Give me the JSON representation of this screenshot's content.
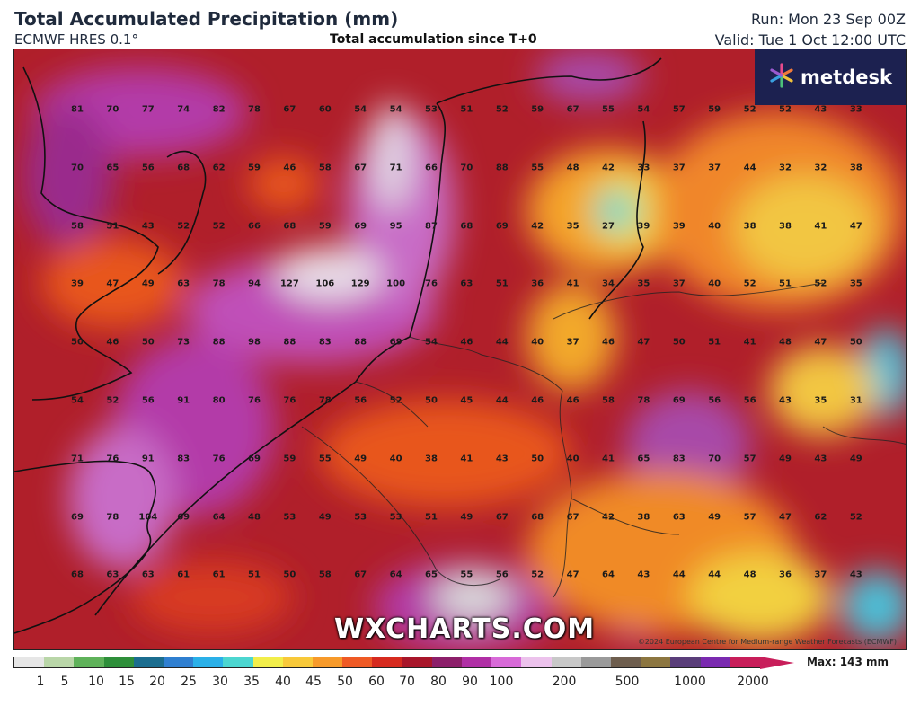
{
  "header": {
    "title": "Total Accumulated Precipitation (mm)",
    "model": "ECMWF HRES 0.1°",
    "subtitle": "Total accumulation since T+0",
    "run": "Run: Mon 23 Sep 00Z",
    "valid": "Valid: Tue 1 Oct 12:00 UTC"
  },
  "logo": {
    "text": "metdesk",
    "icon": "metdesk-star-icon"
  },
  "watermark": "WXCHARTS.COM",
  "copyright": "©2024 European Centre for Medium-range Weather Forecasts (ECMWF)",
  "colorbar": {
    "max_label": "Max: 143 mm",
    "ticks": [
      "1",
      "5",
      "10",
      "15",
      "20",
      "25",
      "30",
      "35",
      "40",
      "45",
      "50",
      "60",
      "70",
      "80",
      "90",
      "100",
      "200",
      "500",
      "1000",
      "2000"
    ],
    "colors": [
      "#e6e6e6",
      "#b9d6a8",
      "#5fb25a",
      "#2e8f3a",
      "#1b6d8f",
      "#2f7fd0",
      "#2ab0e8",
      "#4cd6d0",
      "#f2ee4a",
      "#f8c93a",
      "#f79a2a",
      "#ef5a25",
      "#d62a1f",
      "#a8162a",
      "#8c1f6a",
      "#b02fa5",
      "#d86ad8",
      "#ecc2ec",
      "#c8c8c8",
      "#9a9a9a",
      "#6e5e4e",
      "#8c7640",
      "#5a3e7a",
      "#7a2ab0",
      "#c81e5a"
    ]
  },
  "grid_values": [
    [
      "81",
      "70",
      "77",
      "74",
      "82",
      "78",
      "67",
      "60",
      "54",
      "54",
      "53",
      "51",
      "52",
      "59",
      "67",
      "55",
      "54",
      "57",
      "59",
      "52",
      "52",
      "43",
      "33"
    ],
    [
      "70",
      "65",
      "56",
      "68",
      "62",
      "59",
      "46",
      "58",
      "67",
      "71",
      "66",
      "70",
      "88",
      "55",
      "48",
      "42",
      "33",
      "37",
      "37",
      "44",
      "32",
      "32",
      "38"
    ],
    [
      "58",
      "51",
      "43",
      "52",
      "52",
      "66",
      "68",
      "59",
      "69",
      "95",
      "87",
      "68",
      "69",
      "42",
      "35",
      "27",
      "39",
      "39",
      "40",
      "38",
      "38",
      "41",
      "47"
    ],
    [
      "39",
      "47",
      "49",
      "63",
      "78",
      "94",
      "127",
      "106",
      "129",
      "100",
      "76",
      "63",
      "51",
      "36",
      "41",
      "34",
      "35",
      "37",
      "40",
      "52",
      "51",
      "52",
      "35"
    ],
    [
      "50",
      "46",
      "50",
      "73",
      "88",
      "98",
      "88",
      "83",
      "88",
      "69",
      "54",
      "46",
      "44",
      "40",
      "37",
      "46",
      "47",
      "50",
      "51",
      "41",
      "48",
      "47",
      "50"
    ],
    [
      "54",
      "52",
      "56",
      "91",
      "80",
      "76",
      "76",
      "78",
      "56",
      "52",
      "50",
      "45",
      "44",
      "46",
      "46",
      "58",
      "78",
      "69",
      "56",
      "56",
      "43",
      "35",
      "31"
    ],
    [
      "71",
      "76",
      "91",
      "83",
      "76",
      "69",
      "59",
      "55",
      "49",
      "40",
      "38",
      "41",
      "43",
      "50",
      "40",
      "41",
      "65",
      "83",
      "70",
      "57",
      "49",
      "43",
      "49"
    ],
    [
      "69",
      "78",
      "104",
      "69",
      "64",
      "48",
      "53",
      "49",
      "53",
      "53",
      "51",
      "49",
      "67",
      "68",
      "67",
      "42",
      "38",
      "63",
      "49",
      "57",
      "47",
      "62",
      "52"
    ],
    [
      "68",
      "63",
      "63",
      "61",
      "61",
      "51",
      "50",
      "58",
      "67",
      "64",
      "65",
      "55",
      "56",
      "52",
      "47",
      "64",
      "43",
      "44",
      "44",
      "48",
      "36",
      "37",
      "43"
    ]
  ],
  "colors": {
    "dominant_fill": "#b01f2a",
    "high_fill": "#b33aa8",
    "low_fill": "#f4c842"
  }
}
